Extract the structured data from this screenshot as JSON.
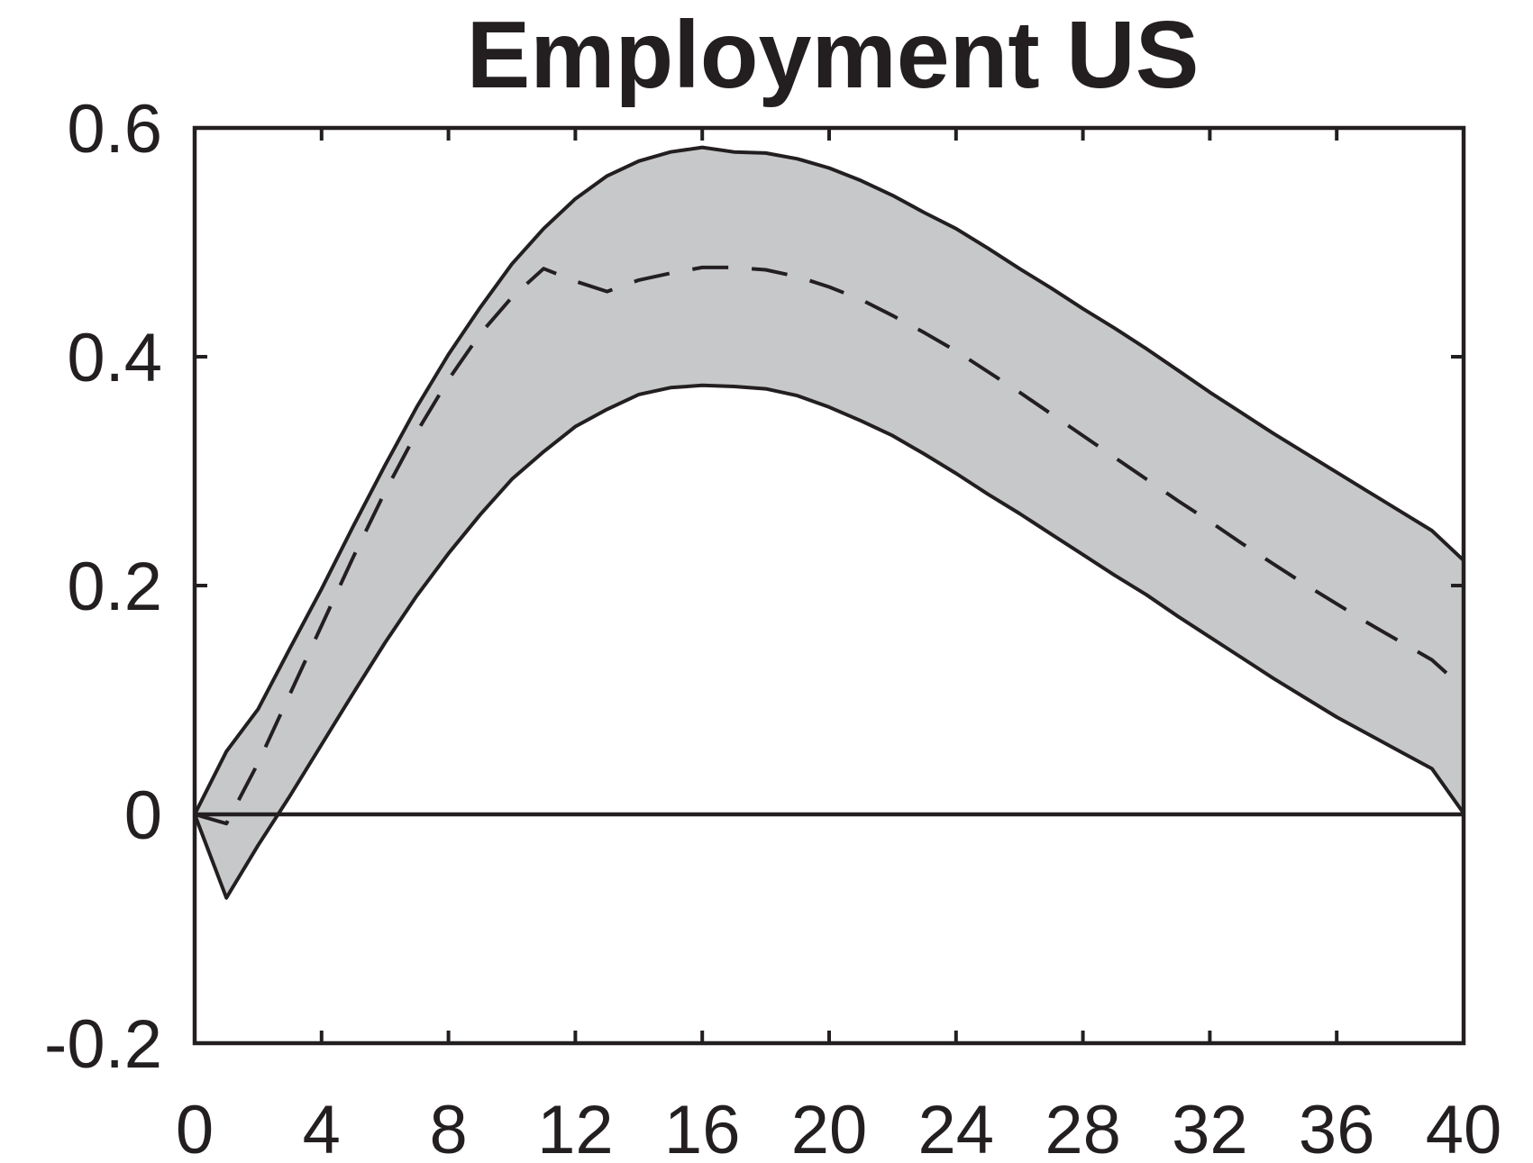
{
  "chart_data": {
    "type": "area",
    "title": "Employment US",
    "xlabel": "",
    "ylabel": "",
    "xlim": [
      0,
      40
    ],
    "ylim": [
      -0.2,
      0.6
    ],
    "xticks": [
      0,
      4,
      8,
      12,
      16,
      20,
      24,
      28,
      32,
      36,
      40
    ],
    "xtick_labels": [
      "0",
      "4",
      "8",
      "12",
      "16",
      "20",
      "24",
      "28",
      "32",
      "36",
      "40"
    ],
    "yticks": [
      -0.2,
      0,
      0.2,
      0.4,
      0.6
    ],
    "ytick_labels": [
      "-0.2",
      "0",
      "0.2",
      "0.4",
      "0.6"
    ],
    "grid": false,
    "zero_line": true,
    "x": [
      0,
      1,
      2,
      3,
      4,
      5,
      6,
      7,
      8,
      9,
      10,
      11,
      12,
      13,
      14,
      15,
      16,
      17,
      18,
      19,
      20,
      21,
      22,
      23,
      24,
      25,
      26,
      27,
      28,
      29,
      30,
      31,
      32,
      33,
      34,
      35,
      36,
      37,
      38,
      39,
      40
    ],
    "series": [
      {
        "style": "dashed",
        "values": [
          0,
          -0.008,
          0.045,
          0.105,
          0.165,
          0.225,
          0.282,
          0.334,
          0.38,
          0.42,
          0.452,
          0.477,
          0.466,
          0.457,
          0.467,
          0.473,
          0.478,
          0.478,
          0.476,
          0.47,
          0.461,
          0.45,
          0.436,
          0.421,
          0.405,
          0.387,
          0.369,
          0.35,
          0.331,
          0.312,
          0.293,
          0.274,
          0.256,
          0.237,
          0.219,
          0.201,
          0.184,
          0.167,
          0.151,
          0.135,
          0.11
        ]
      }
    ],
    "band": {
      "color": "#c7c8ca",
      "upper": [
        0,
        0.055,
        0.092,
        0.145,
        0.197,
        0.252,
        0.305,
        0.356,
        0.402,
        0.443,
        0.481,
        0.512,
        0.538,
        0.558,
        0.571,
        0.579,
        0.583,
        0.579,
        0.578,
        0.573,
        0.565,
        0.554,
        0.541,
        0.526,
        0.512,
        0.495,
        0.477,
        0.46,
        0.442,
        0.425,
        0.407,
        0.388,
        0.369,
        0.351,
        0.333,
        0.316,
        0.299,
        0.282,
        0.265,
        0.248,
        0.222
      ],
      "lower": [
        0,
        -0.073,
        -0.027,
        0.016,
        0.061,
        0.106,
        0.15,
        0.191,
        0.228,
        0.262,
        0.293,
        0.317,
        0.339,
        0.354,
        0.367,
        0.373,
        0.375,
        0.374,
        0.372,
        0.366,
        0.356,
        0.344,
        0.331,
        0.315,
        0.298,
        0.28,
        0.263,
        0.245,
        0.227,
        0.209,
        0.192,
        0.173,
        0.155,
        0.137,
        0.119,
        0.102,
        0.085,
        0.07,
        0.055,
        0.04,
        0.001
      ]
    }
  }
}
